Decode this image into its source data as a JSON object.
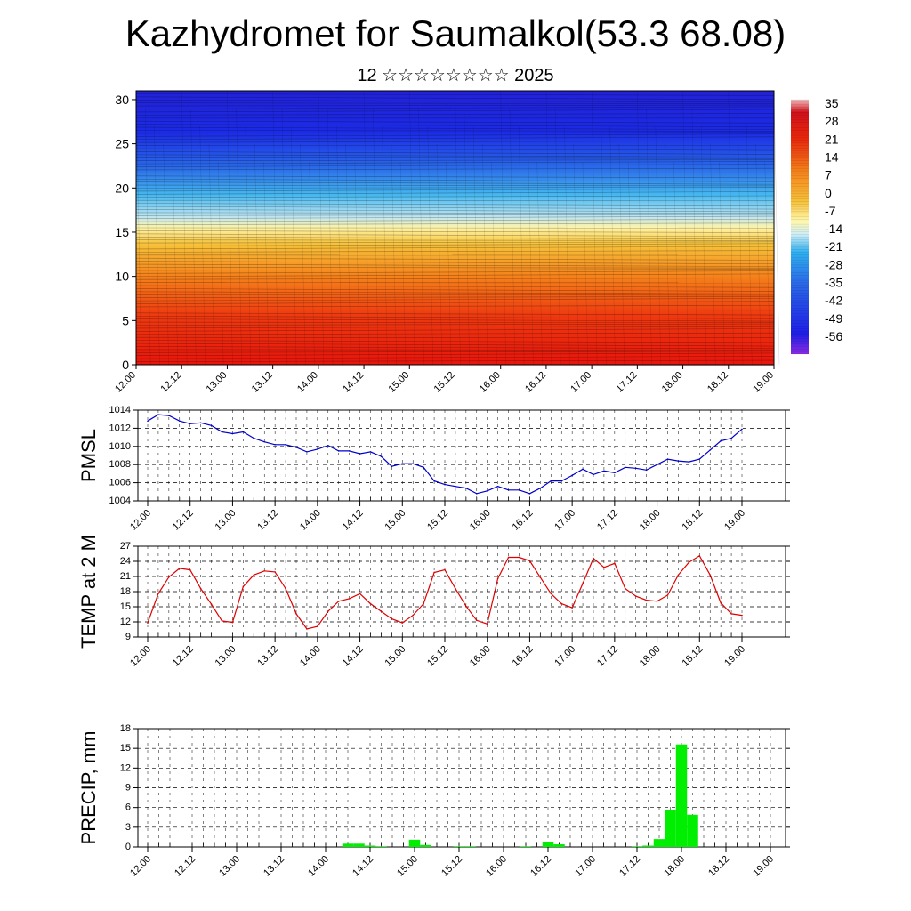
{
  "header": {
    "title": "Kazhydromet for Saumalkol(53.3 68.08)",
    "subtitle": "12 ☆☆☆☆☆☆☆☆ 2025"
  },
  "chart_data": [
    {
      "type": "heatmap",
      "panel": "cross-section",
      "ylabel": "",
      "ylim": [
        0,
        31
      ],
      "yticks": [
        "0",
        "5",
        "10",
        "15",
        "20",
        "25",
        "30"
      ],
      "xticks": [
        "12.00",
        "12.12",
        "13.00",
        "13.12",
        "14.00",
        "14.12",
        "15.00",
        "15.12",
        "16.00",
        "16.12",
        "17.00",
        "17.12",
        "18.00",
        "18.12",
        "19.00"
      ],
      "colorbar_labels": [
        "35",
        "28",
        "21",
        "14",
        "7",
        "0",
        "-7",
        "-14",
        "-21",
        "-28",
        "-35",
        "-42",
        "-49",
        "-56"
      ],
      "color_range": [
        -63,
        42
      ],
      "colors": {
        "hot": "#e01a0a",
        "warm": "#f5a623",
        "neutral": "#fff7a8",
        "cool": "#4fc3f7",
        "cold": "#1e2ee8"
      }
    },
    {
      "type": "line",
      "panel": "pmsl",
      "ylabel": "PMSL",
      "ylim": [
        1004,
        1014
      ],
      "yticks": [
        "1004",
        "1006",
        "1008",
        "1010",
        "1012",
        "1014"
      ],
      "xticks": [
        "12.00",
        "12.12",
        "13.00",
        "13.12",
        "14.00",
        "14.12",
        "15.00",
        "15.12",
        "16.00",
        "16.12",
        "17.00",
        "17.12",
        "18.00",
        "18.12",
        "19.00"
      ],
      "color": "#0000cc",
      "values": [
        1012.8,
        1013.5,
        1013.4,
        1012.8,
        1012.5,
        1012.6,
        1012.3,
        1011.6,
        1011.4,
        1011.6,
        1010.9,
        1010.5,
        1010.2,
        1010.2,
        1009.9,
        1009.4,
        1009.7,
        1010.1,
        1009.5,
        1009.5,
        1009.2,
        1009.4,
        1008.9,
        1007.8,
        1008.1,
        1008.1,
        1007.7,
        1006.2,
        1005.8,
        1005.6,
        1005.4,
        1004.8,
        1005.1,
        1005.6,
        1005.2,
        1005.2,
        1004.8,
        1005.4,
        1006.2,
        1006.2,
        1006.8,
        1007.5,
        1006.9,
        1007.3,
        1007.1,
        1007.7,
        1007.6,
        1007.4,
        1008.0,
        1008.6,
        1008.4,
        1008.3,
        1008.6,
        1009.6,
        1010.6,
        1010.9,
        1011.9
      ]
    },
    {
      "type": "line",
      "panel": "temp",
      "ylabel": "TEMP at 2 M",
      "ylim": [
        9,
        27
      ],
      "yticks": [
        "9",
        "12",
        "15",
        "18",
        "21",
        "24",
        "27"
      ],
      "xticks": [
        "12.00",
        "12.12",
        "13.00",
        "13.12",
        "14.00",
        "14.12",
        "15.00",
        "15.12",
        "16.00",
        "16.12",
        "17.00",
        "17.12",
        "18.00",
        "18.12",
        "19.00"
      ],
      "color": "#e00000",
      "values": [
        11.8,
        17.6,
        20.9,
        22.6,
        22.3,
        18.6,
        15.5,
        12.2,
        11.9,
        19.0,
        21.3,
        22.1,
        21.9,
        18.6,
        13.6,
        10.6,
        11.1,
        14.1,
        16.1,
        16.6,
        17.6,
        15.6,
        14.1,
        12.6,
        11.8,
        13.3,
        15.6,
        21.8,
        22.3,
        18.6,
        15.1,
        12.3,
        11.6,
        20.6,
        24.8,
        24.8,
        24.1,
        20.8,
        17.6,
        15.6,
        14.8,
        19.6,
        24.6,
        22.8,
        23.6,
        18.6,
        17.1,
        16.3,
        16.1,
        17.3,
        21.3,
        23.8,
        25.1,
        21.3,
        15.8,
        13.6,
        13.3
      ]
    },
    {
      "type": "bar",
      "panel": "precip",
      "ylabel": "PRECIP, mm",
      "ylim": [
        0,
        18
      ],
      "yticks": [
        "0",
        "3",
        "6",
        "9",
        "12",
        "15",
        "18"
      ],
      "xticks": [
        "12.00",
        "12.12",
        "13.00",
        "13.12",
        "14.00",
        "14.12",
        "15.00",
        "15.12",
        "16.00",
        "16.12",
        "17.00",
        "17.12",
        "18.00",
        "18.12",
        "19.00"
      ],
      "color": "#00ee00",
      "values": [
        0,
        0,
        0,
        0,
        0,
        0,
        0,
        0,
        0,
        0,
        0,
        0,
        0,
        0,
        0,
        0,
        0,
        0,
        0.5,
        0.5,
        0.2,
        0.1,
        0,
        0,
        1.1,
        0.3,
        0,
        0,
        0.1,
        0.1,
        0,
        0,
        0,
        0,
        0.1,
        0,
        0.8,
        0.4,
        0,
        0,
        0,
        0,
        0,
        0,
        0.1,
        0.2,
        1.2,
        5.6,
        15.6,
        4.9,
        0,
        0,
        0,
        0,
        0,
        0,
        0
      ]
    }
  ]
}
